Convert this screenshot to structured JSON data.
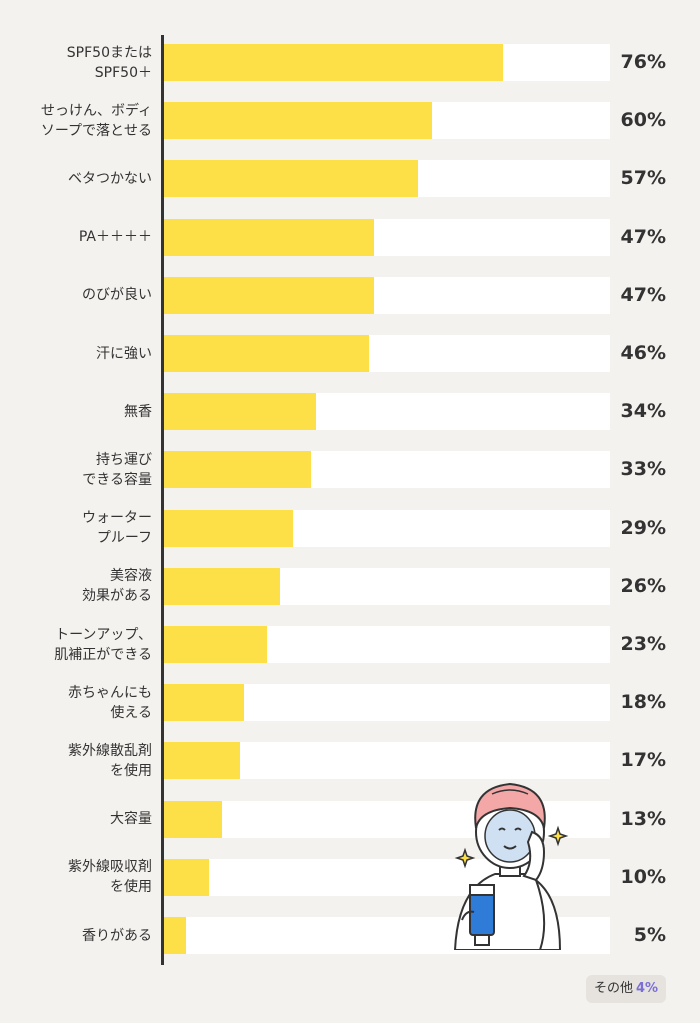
{
  "chart_data": {
    "type": "bar",
    "orientation": "horizontal",
    "categories": [
      "SPF50または\nSPF50＋",
      "せっけん、ボディ\nソープで落とせる",
      "ベタつかない",
      "PA＋＋＋＋",
      "のびが良い",
      "汗に強い",
      "無香",
      "持ち運び\nできる容量",
      "ウォーター\nプルーフ",
      "美容液\n効果がある",
      "トーンアップ、\n肌補正ができる",
      "赤ちゃんにも\n使える",
      "紫外線散乱剤\nを使用",
      "大容量",
      "紫外線吸収剤\nを使用",
      "香りがある"
    ],
    "values": [
      76,
      60,
      57,
      47,
      47,
      46,
      34,
      33,
      29,
      26,
      23,
      18,
      17,
      13,
      10,
      5
    ],
    "value_labels": [
      "76%",
      "60%",
      "57%",
      "47%",
      "47%",
      "46%",
      "34%",
      "33%",
      "29%",
      "26%",
      "23%",
      "18%",
      "17%",
      "13%",
      "10%",
      "5%"
    ],
    "xlim": [
      0,
      100
    ],
    "grid": false,
    "bar_color": "#fde047",
    "track_color": "#ffffff",
    "other": {
      "label": "その他",
      "value": "4%",
      "value_color": "#7b6fd6"
    }
  },
  "illustration": {
    "icon": "woman-applying-sunscreen-icon"
  }
}
